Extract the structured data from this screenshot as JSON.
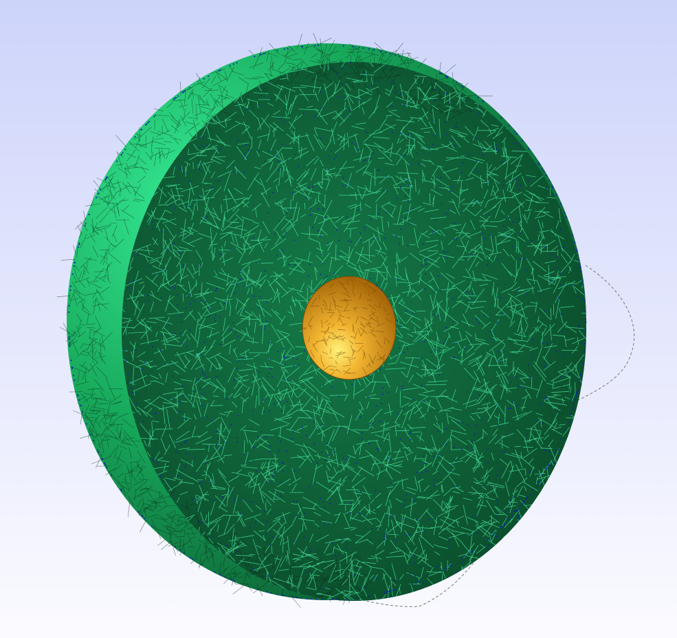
{
  "viewer": {
    "background_top": "#cdd4fa",
    "background_bottom": "#fbfbff",
    "scene": "tetrahedral-mesh-clipped-sphere-with-inner-core"
  },
  "colors": {
    "outer_shell": "#17a85a",
    "outer_shell_light": "#2fe08a",
    "cut_face_fill": "#0f5a36",
    "mesh_lines": "#4ef0a8",
    "mesh_edges": "#0a2a18",
    "vertex_dots": "#1020b0",
    "core_highlight": "#fff37a",
    "core_mid": "#f2b531",
    "core_dark": "#b5740a",
    "clip_outline": "#777777"
  }
}
